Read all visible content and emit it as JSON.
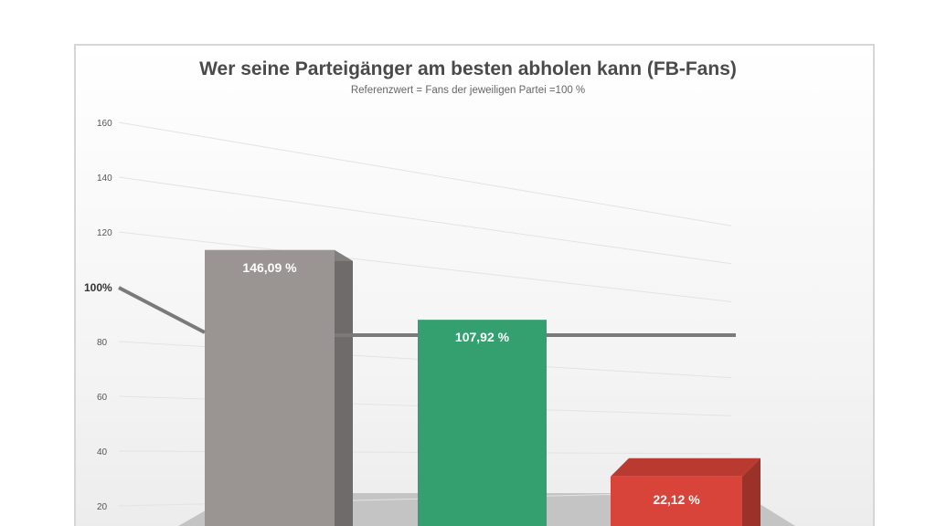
{
  "chart_data": {
    "type": "bar",
    "title": "Wer seine Parteigänger am besten abholen kann (FB-Fans)",
    "subtitle": "Referenzwert = Fans der jeweiligen Partei =100 %",
    "categories": [
      "",
      "",
      ""
    ],
    "values": [
      146.09,
      107.92,
      22.12
    ],
    "value_labels": [
      "146,09 %",
      "107,92 %",
      "22,12 %"
    ],
    "colors": [
      "#9a9593",
      "#34a070",
      "#d9443a"
    ],
    "y_ticks": [
      20,
      40,
      60,
      80,
      120,
      140,
      160
    ],
    "ylim": [
      0,
      160
    ],
    "reference": {
      "value": 100,
      "label": "100%",
      "color": "#7a7a7a"
    },
    "grid": true,
    "legend": "none"
  }
}
